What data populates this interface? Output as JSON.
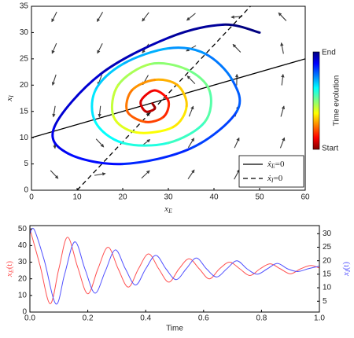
{
  "chart_data": [
    {
      "type": "phase",
      "xlabel": {
        "main": "x",
        "sub": "E"
      },
      "ylabel": {
        "main": "x",
        "sub": "I"
      },
      "xlim": [
        0,
        60
      ],
      "ylim": [
        0,
        35
      ],
      "xticks": [
        0,
        10,
        20,
        30,
        40,
        50,
        60
      ],
      "yticks": [
        0,
        5,
        10,
        15,
        20,
        25,
        30,
        35
      ],
      "quiver": {
        "color": "#3a3a3a",
        "x": [
          5,
          15,
          25,
          35,
          45,
          55
        ],
        "y": [
          3,
          9,
          15,
          21,
          27,
          33
        ],
        "u": [
          [
            8.25,
            10.75,
            13.25,
            15.75,
            18.25,
            20.75
          ],
          [
            2.25,
            4.75,
            7.25,
            9.75,
            12.25,
            14.75
          ],
          [
            -3.75,
            -1.25,
            1.25,
            3.75,
            6.25,
            8.75
          ],
          [
            -9.75,
            -7.25,
            -4.75,
            -2.25,
            0.25,
            2.75
          ],
          [
            -15.75,
            -13.25,
            -10.75,
            -8.25,
            -5.75,
            -3.25
          ],
          [
            -21.75,
            -19.25,
            -16.75,
            -14.25,
            -11.75,
            -9.25
          ]
        ],
        "v": [
          [
            -7.6,
            1.6,
            10.8,
            20,
            29.2,
            38.4
          ],
          [
            -13.6,
            -4.4,
            4.8,
            14,
            23.2,
            32.4
          ],
          [
            -19.6,
            -10.4,
            -1.2,
            8,
            17.2,
            26.4
          ],
          [
            -25.6,
            -16.4,
            -7.2,
            2,
            11.2,
            20.4
          ],
          [
            -31.6,
            -22.4,
            -13.2,
            -4,
            5.2,
            14.4
          ],
          [
            -37.6,
            -28.4,
            -19.2,
            -10,
            -0.8,
            8.4
          ]
        ]
      },
      "nullclines": [
        {
          "name": "ẋ",
          "sub": "E",
          "eq": "=0",
          "x": [
            0,
            60
          ],
          "y": [
            10,
            25
          ],
          "dashed": false,
          "color": "#000000"
        },
        {
          "name": "ẋ",
          "sub": "I",
          "eq": "=0",
          "x": [
            10,
            48
          ],
          "y": [
            0,
            35
          ],
          "dashed": true,
          "color": "#000000"
        }
      ],
      "legend": "lower right",
      "trajectory": {
        "x": [
          50,
          42,
          30,
          15,
          5,
          8,
          20,
          35,
          45,
          44,
          38,
          30,
          20,
          14,
          14,
          20,
          30,
          38,
          39,
          34,
          26,
          19,
          18,
          23,
          31,
          34,
          32,
          27,
          22,
          21,
          25,
          29,
          30,
          27,
          24,
          25,
          27,
          26.5
        ],
        "y": [
          30,
          31.5,
          29,
          22,
          12,
          7,
          5,
          8,
          15,
          21,
          26,
          27,
          24,
          19,
          13,
          9,
          9,
          13,
          19,
          23,
          24,
          20,
          14,
          11,
          12,
          16,
          20,
          21,
          19,
          15,
          13,
          14,
          17,
          19,
          17,
          15,
          15.5,
          16.5
        ]
      },
      "colorbar": {
        "title": "Time evolution",
        "start": "Start",
        "end": "End"
      }
    },
    {
      "type": "line",
      "xlabel": "Time",
      "xlim": [
        0,
        1
      ],
      "ylim": [
        0,
        52
      ],
      "y2lim": [
        1,
        33
      ],
      "xticks": [
        {
          "value": 0,
          "label": "0.0"
        },
        {
          "value": 0.2,
          "label": "0.2"
        },
        {
          "value": 0.4,
          "label": "0.4"
        },
        {
          "value": 0.6,
          "label": "0.6"
        },
        {
          "value": 0.8,
          "label": "0.8"
        },
        {
          "value": 1,
          "label": "1.0"
        }
      ],
      "yticks": [
        0,
        10,
        20,
        30,
        40,
        50
      ],
      "y2ticks": [
        5,
        10,
        15,
        20,
        25,
        30
      ],
      "series": [
        {
          "name": "x",
          "sub": "E",
          "suffix": "(t)",
          "color": "#ff5050",
          "axis": "y",
          "x": [
            0,
            0.035,
            0.07,
            0.1,
            0.13,
            0.165,
            0.2,
            0.235,
            0.27,
            0.305,
            0.34,
            0.375,
            0.41,
            0.445,
            0.48,
            0.515,
            0.55,
            0.585,
            0.62,
            0.655,
            0.69,
            0.725,
            0.76,
            0.795,
            0.83,
            0.865,
            0.9,
            0.935,
            0.97,
            1.0
          ],
          "values": [
            50,
            28,
            5,
            26,
            45,
            27,
            11,
            26,
            39,
            26,
            15,
            26,
            35,
            26,
            18,
            26,
            32,
            26,
            20,
            26,
            30,
            26,
            22,
            26,
            29,
            26,
            23,
            26,
            28,
            26.5
          ]
        },
        {
          "name": "x",
          "sub": "I",
          "suffix": "(t)",
          "color": "#5050ff",
          "axis": "y2",
          "x": [
            0,
            0.015,
            0.05,
            0.09,
            0.12,
            0.155,
            0.19,
            0.225,
            0.26,
            0.295,
            0.33,
            0.365,
            0.4,
            0.435,
            0.47,
            0.505,
            0.54,
            0.575,
            0.61,
            0.645,
            0.68,
            0.715,
            0.75,
            0.785,
            0.82,
            0.855,
            0.89,
            0.925,
            0.96,
            1.0
          ],
          "values": [
            30,
            31.5,
            20,
            4,
            15,
            27,
            17,
            8,
            16,
            24,
            17,
            11,
            17,
            22,
            17,
            13,
            17,
            21,
            17,
            14,
            17,
            20,
            17,
            15,
            17,
            19,
            17,
            16,
            17,
            18
          ]
        }
      ]
    }
  ]
}
